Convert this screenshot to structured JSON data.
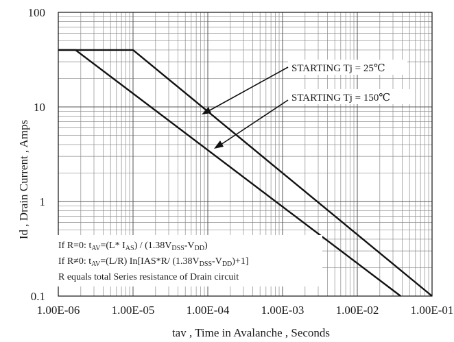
{
  "chart_data": {
    "type": "line",
    "title": "",
    "xlabel": "tav , Time in Avalanche , Seconds",
    "ylabel": "Id , Drain Current , Amps",
    "x_scale": "log",
    "y_scale": "log",
    "xlim": [
      1e-06,
      0.1
    ],
    "ylim": [
      0.1,
      100
    ],
    "grid": true,
    "x_ticks": [
      "1.00E-06",
      "1.00E-05",
      "1.00E-04",
      "1.00E-03",
      "1.00E-02",
      "1.00E-01"
    ],
    "y_ticks": [
      "0.1",
      "1",
      "10",
      "100"
    ],
    "series": [
      {
        "name": "STARTING Tj = 25℃",
        "x": [
          1e-06,
          1e-05,
          0.1
        ],
        "y": [
          40,
          40,
          0.1
        ]
      },
      {
        "name": "STARTING Tj = 150℃",
        "x": [
          1e-06,
          1.7e-06,
          0.038
        ],
        "y": [
          40,
          40,
          0.1
        ]
      }
    ],
    "annotations": [
      {
        "text": "STARTING Tj = 25℃",
        "points_to": "STARTING Tj = 25℃"
      },
      {
        "text": "STARTING Tj = 150℃",
        "points_to": "STARTING Tj = 150℃"
      }
    ],
    "notes": {
      "line1": {
        "a": "If R=0: t",
        "a_sub": "AV",
        "b": "=(L* I",
        "b_sub": "AS",
        "c": ") / (1.38V",
        "c_sub": "DSS",
        "d": "-V",
        "d_sub": "DD",
        "e": ")"
      },
      "line2": {
        "a": "If R≠0: t",
        "a_sub": "AV",
        "b": "=(L/R) In[IAS*R/ (1.38V",
        "b_sub": "DSS",
        "c": "-V",
        "c_sub": "DD",
        "d": ")+1]"
      },
      "line3": "R equals total Series resistance of Drain circuit"
    }
  }
}
